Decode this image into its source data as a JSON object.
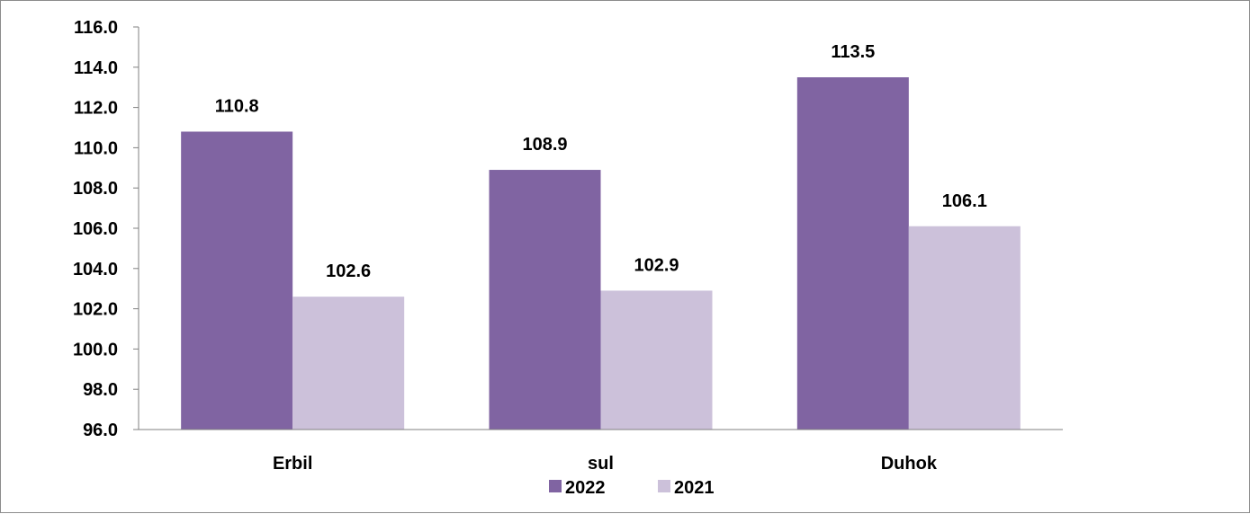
{
  "chart_data": {
    "type": "bar",
    "categories": [
      "Erbil",
      "sul",
      "Duhok"
    ],
    "series": [
      {
        "name": "2022",
        "values": [
          110.8,
          108.9,
          113.5
        ],
        "color": "#8064a2"
      },
      {
        "name": "2021",
        "values": [
          102.6,
          102.9,
          106.1
        ],
        "color": "#ccc1da"
      }
    ],
    "ylim": [
      96.0,
      116.0
    ],
    "ytick_step": 2.0,
    "yticks": [
      "96.0",
      "98.0",
      "100.0",
      "102.0",
      "104.0",
      "106.0",
      "108.0",
      "110.0",
      "112.0",
      "114.0",
      "116.0"
    ],
    "value_labels": [
      [
        "110.8",
        "108.9",
        "113.5"
      ],
      [
        "102.6",
        "102.9",
        "106.1"
      ]
    ],
    "title": "",
    "xlabel": "",
    "ylabel": "",
    "grid": false,
    "legend_position": "bottom",
    "axis_color": "#808080"
  }
}
